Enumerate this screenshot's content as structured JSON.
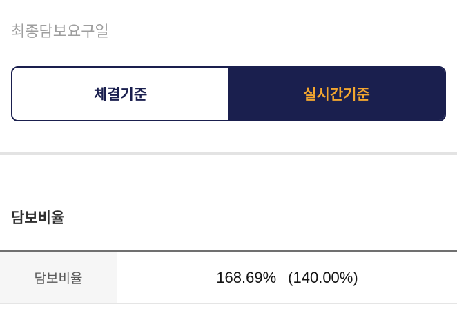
{
  "header": {
    "field_label": "최종담보요구일"
  },
  "toggle": {
    "options": [
      {
        "label": "체결기준",
        "selected": false
      },
      {
        "label": "실시간기준",
        "selected": true
      }
    ]
  },
  "section": {
    "title": "담보비율"
  },
  "table": {
    "rows": [
      {
        "label": "담보비율",
        "value_primary": "168.69%",
        "value_secondary": "(140.00%)"
      }
    ]
  },
  "colors": {
    "navy": "#1a1f4e",
    "orange": "#f3a62f",
    "muted_label": "#9e9e9e",
    "heading_text": "#2f2f2f",
    "cell_label": "#5a5a5a",
    "value_text": "#141414",
    "table_top_border": "#707070",
    "light_border": "#e0e0e0",
    "cell_bg": "#f6f6f6",
    "divider": "#e3e3e3"
  }
}
